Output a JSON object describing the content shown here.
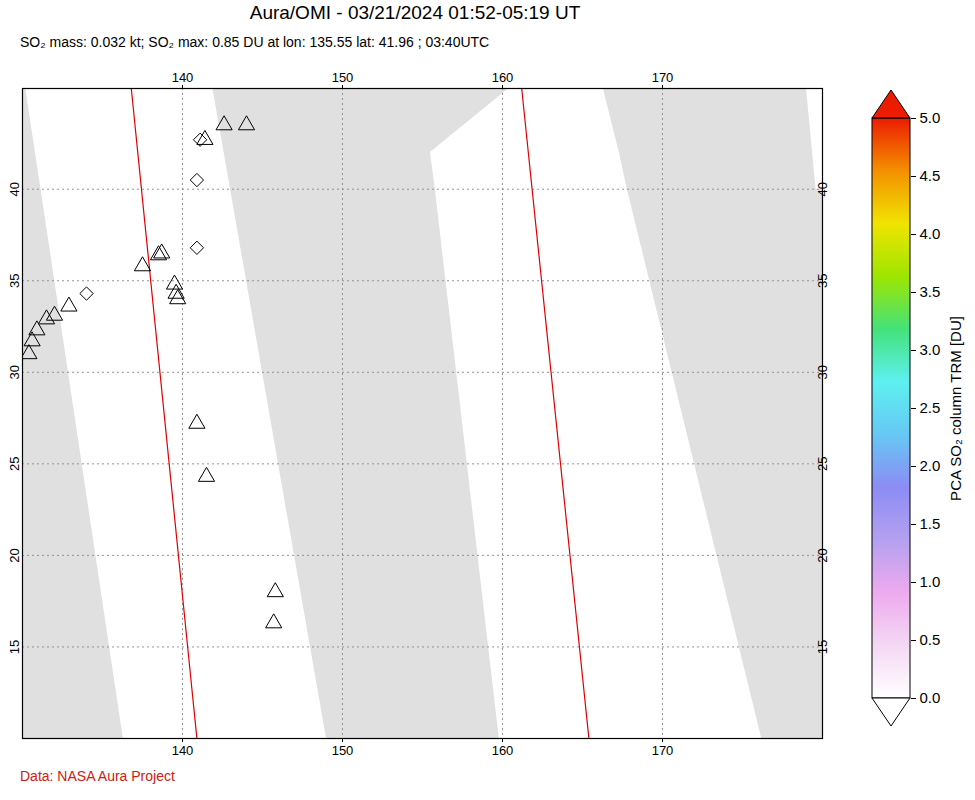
{
  "chart_data": {
    "type": "map",
    "title": "Aura/OMI - 03/21/2024 01:52-05:19 UT",
    "subtitle": "SO₂ mass: 0.032 kt; SO₂ max: 0.85 DU at lon: 135.55 lat: 41.96 ; 03:40UTC",
    "caption": "Data: NASA Aura Project",
    "xlim": [
      130,
      180
    ],
    "ylim": [
      10,
      45.5
    ],
    "xticks": [
      140,
      150,
      160,
      170
    ],
    "yticks": [
      15,
      20,
      25,
      30,
      35,
      40
    ],
    "grid": true,
    "swaths": [
      [
        {
          "lat": 10,
          "lon_min": 136.3,
          "lon_max": 149.0
        },
        {
          "lat": 38,
          "lon_min": 131.5,
          "lon_max": 143.4
        },
        {
          "lat": 45.5,
          "lon_min": 130.2,
          "lon_max": 141.9
        }
      ],
      [
        {
          "lat": 10,
          "lon_min": 159.8,
          "lon_max": 176.2
        },
        {
          "lat": 40,
          "lon_min": 155.8,
          "lon_max": 167.8
        },
        {
          "lat": 42,
          "lon_min": 155.5,
          "lon_max": 167.3
        },
        {
          "lat": 45.5,
          "lon_min": 160.4,
          "lon_max": 166.3
        }
      ],
      [
        {
          "lat": 40,
          "lon_min": 179.6,
          "lon_max": 181
        },
        {
          "lat": 45.5,
          "lon_min": 179.0,
          "lon_max": 181
        }
      ]
    ],
    "tracks": [
      [
        [
          136.8,
          45.5
        ],
        [
          140.9,
          10
        ]
      ],
      [
        [
          161.2,
          45.5
        ],
        [
          165.4,
          10
        ]
      ]
    ],
    "volcanoes": [
      [
        142.6,
        43.5
      ],
      [
        144.0,
        43.5
      ],
      [
        141.4,
        42.7
      ],
      [
        137.5,
        35.8
      ],
      [
        138.5,
        36.4
      ],
      [
        138.7,
        36.5
      ],
      [
        139.5,
        34.8
      ],
      [
        139.6,
        34.3
      ],
      [
        139.7,
        34.0
      ],
      [
        140.9,
        27.2
      ],
      [
        141.5,
        24.3
      ],
      [
        145.8,
        18.0
      ],
      [
        145.7,
        16.3
      ],
      [
        131.5,
        32.9
      ],
      [
        130.9,
        32.3
      ],
      [
        130.6,
        31.7
      ],
      [
        130.4,
        31.0
      ],
      [
        132.0,
        33.1
      ],
      [
        132.9,
        33.6
      ]
    ],
    "diamonds": [
      [
        140.9,
        40.5
      ],
      [
        140.9,
        36.8
      ],
      [
        134.0,
        34.3
      ],
      [
        141.1,
        42.7
      ]
    ],
    "colorbar": {
      "label": "PCA SO₂ column TRM [DU]",
      "range": [
        0,
        5
      ],
      "ticks": [
        {
          "value": 0,
          "label": "0.0"
        },
        {
          "value": 0.5,
          "label": "0.5"
        },
        {
          "value": 1,
          "label": "1.0"
        },
        {
          "value": 1.5,
          "label": "1.5"
        },
        {
          "value": 2,
          "label": "2.0"
        },
        {
          "value": 2.5,
          "label": "2.5"
        },
        {
          "value": 3,
          "label": "3.0"
        },
        {
          "value": 3.5,
          "label": "3.5"
        },
        {
          "value": 4,
          "label": "4.0"
        },
        {
          "value": 4.5,
          "label": "4.5"
        },
        {
          "value": 5,
          "label": "5.0"
        }
      ],
      "colors": [
        "#ffffff",
        "#f4d8f4",
        "#eeaaee",
        "#b4a0f0",
        "#8c8cf4",
        "#66c8f4",
        "#5ef0f0",
        "#44e27a",
        "#9ee600",
        "#f0e400",
        "#f49000",
        "#ec1c00"
      ]
    }
  }
}
